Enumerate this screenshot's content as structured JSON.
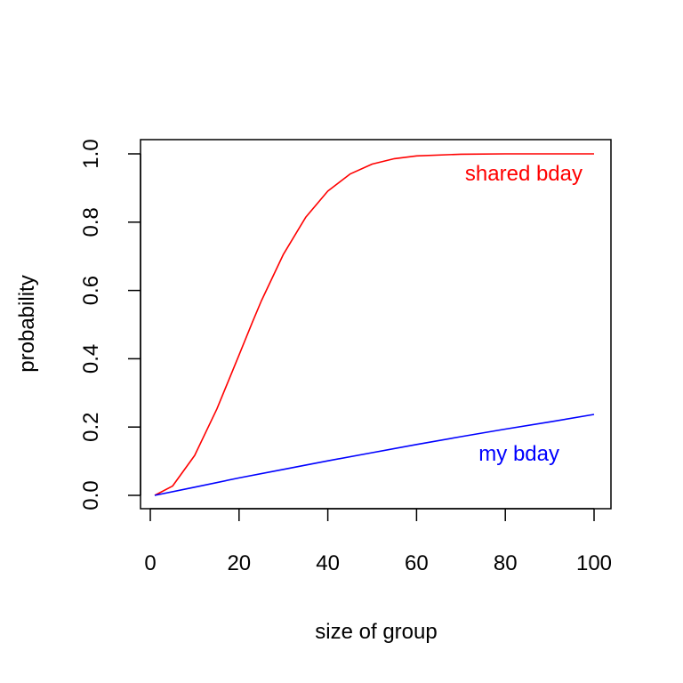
{
  "chart_data": {
    "type": "line",
    "title": "",
    "xlabel": "size of group",
    "ylabel": "probability",
    "xlim": [
      1,
      100
    ],
    "ylim": [
      0,
      1
    ],
    "x_ticks": [
      "0",
      "20",
      "40",
      "60",
      "80",
      "100"
    ],
    "y_ticks": [
      "0.0",
      "0.2",
      "0.4",
      "0.6",
      "0.8",
      "1.0"
    ],
    "grid": false,
    "legend": "none",
    "series": [
      {
        "name": "shared bday",
        "color": "#ff0000",
        "x": [
          1,
          5,
          10,
          15,
          20,
          23,
          25,
          30,
          35,
          40,
          45,
          50,
          55,
          60,
          70,
          80,
          90,
          100
        ],
        "values": [
          0.0,
          0.027,
          0.117,
          0.253,
          0.411,
          0.507,
          0.569,
          0.706,
          0.814,
          0.891,
          0.941,
          0.97,
          0.986,
          0.994,
          0.999,
          1.0,
          1.0,
          1.0
        ]
      },
      {
        "name": "my bday",
        "color": "#0000ff",
        "x": [
          1,
          10,
          20,
          30,
          40,
          50,
          60,
          70,
          80,
          90,
          100
        ],
        "values": [
          0.0,
          0.024,
          0.051,
          0.076,
          0.101,
          0.125,
          0.149,
          0.172,
          0.194,
          0.215,
          0.237
        ]
      }
    ]
  }
}
